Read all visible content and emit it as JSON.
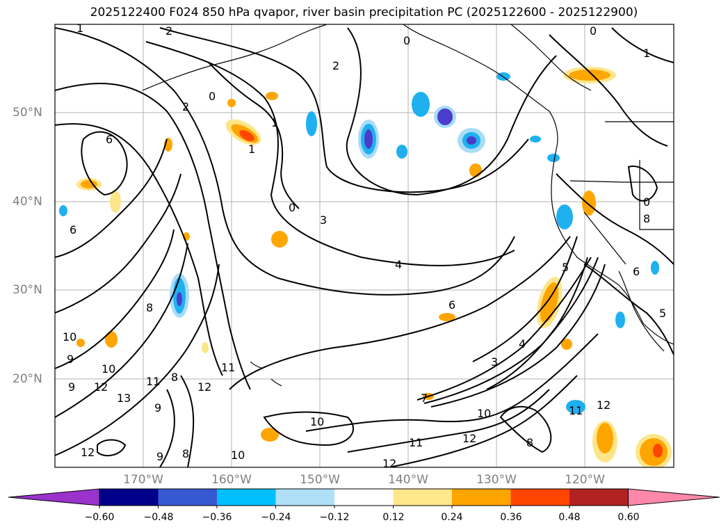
{
  "title": "2025122400 F024 850 hPa qvapor, river basin precipitation PC (2025122600 - 2025122900)",
  "map": {
    "lat_labels": [
      "50°N",
      "40°N",
      "30°N",
      "20°N"
    ],
    "lon_labels": [
      "170°W",
      "160°W",
      "150°W",
      "140°W",
      "130°W",
      "120°W"
    ],
    "contour_labels": [
      "1",
      "2",
      "0",
      "2",
      "0",
      "1",
      "1",
      "2",
      "6",
      "0",
      "3",
      "4",
      "6",
      "6",
      "8",
      "10",
      "9",
      "10",
      "12",
      "9",
      "13",
      "12",
      "11",
      "11",
      "8",
      "9",
      "12",
      "10",
      "8",
      "10",
      "12",
      "11",
      "9",
      "8",
      "12",
      "10",
      "7",
      "3",
      "4",
      "5",
      "5",
      "6",
      "8",
      "11",
      "12",
      "0",
      "0",
      "1"
    ],
    "shading_colors": {
      "neg_strong": "#4b3ccb",
      "neg_mid": "#1fb0f0",
      "neg_weak": "#a8dcf7",
      "pos_weak": "#fde68a",
      "pos_mid": "#ffa500",
      "pos_strong": "#ff4500",
      "pos_max": "#b22222"
    }
  },
  "colorbar": {
    "ticks": [
      "−0.60",
      "−0.48",
      "−0.36",
      "−0.24",
      "−0.12",
      "0.12",
      "0.24",
      "0.36",
      "0.48",
      "0.60"
    ],
    "colors": [
      "#9933cc",
      "#00008b",
      "#3658d0",
      "#00bfff",
      "#b0e0f8",
      "#ffffff",
      "#ffe88a",
      "#ffa500",
      "#ff4500",
      "#b22222",
      "#ff88aa"
    ]
  }
}
